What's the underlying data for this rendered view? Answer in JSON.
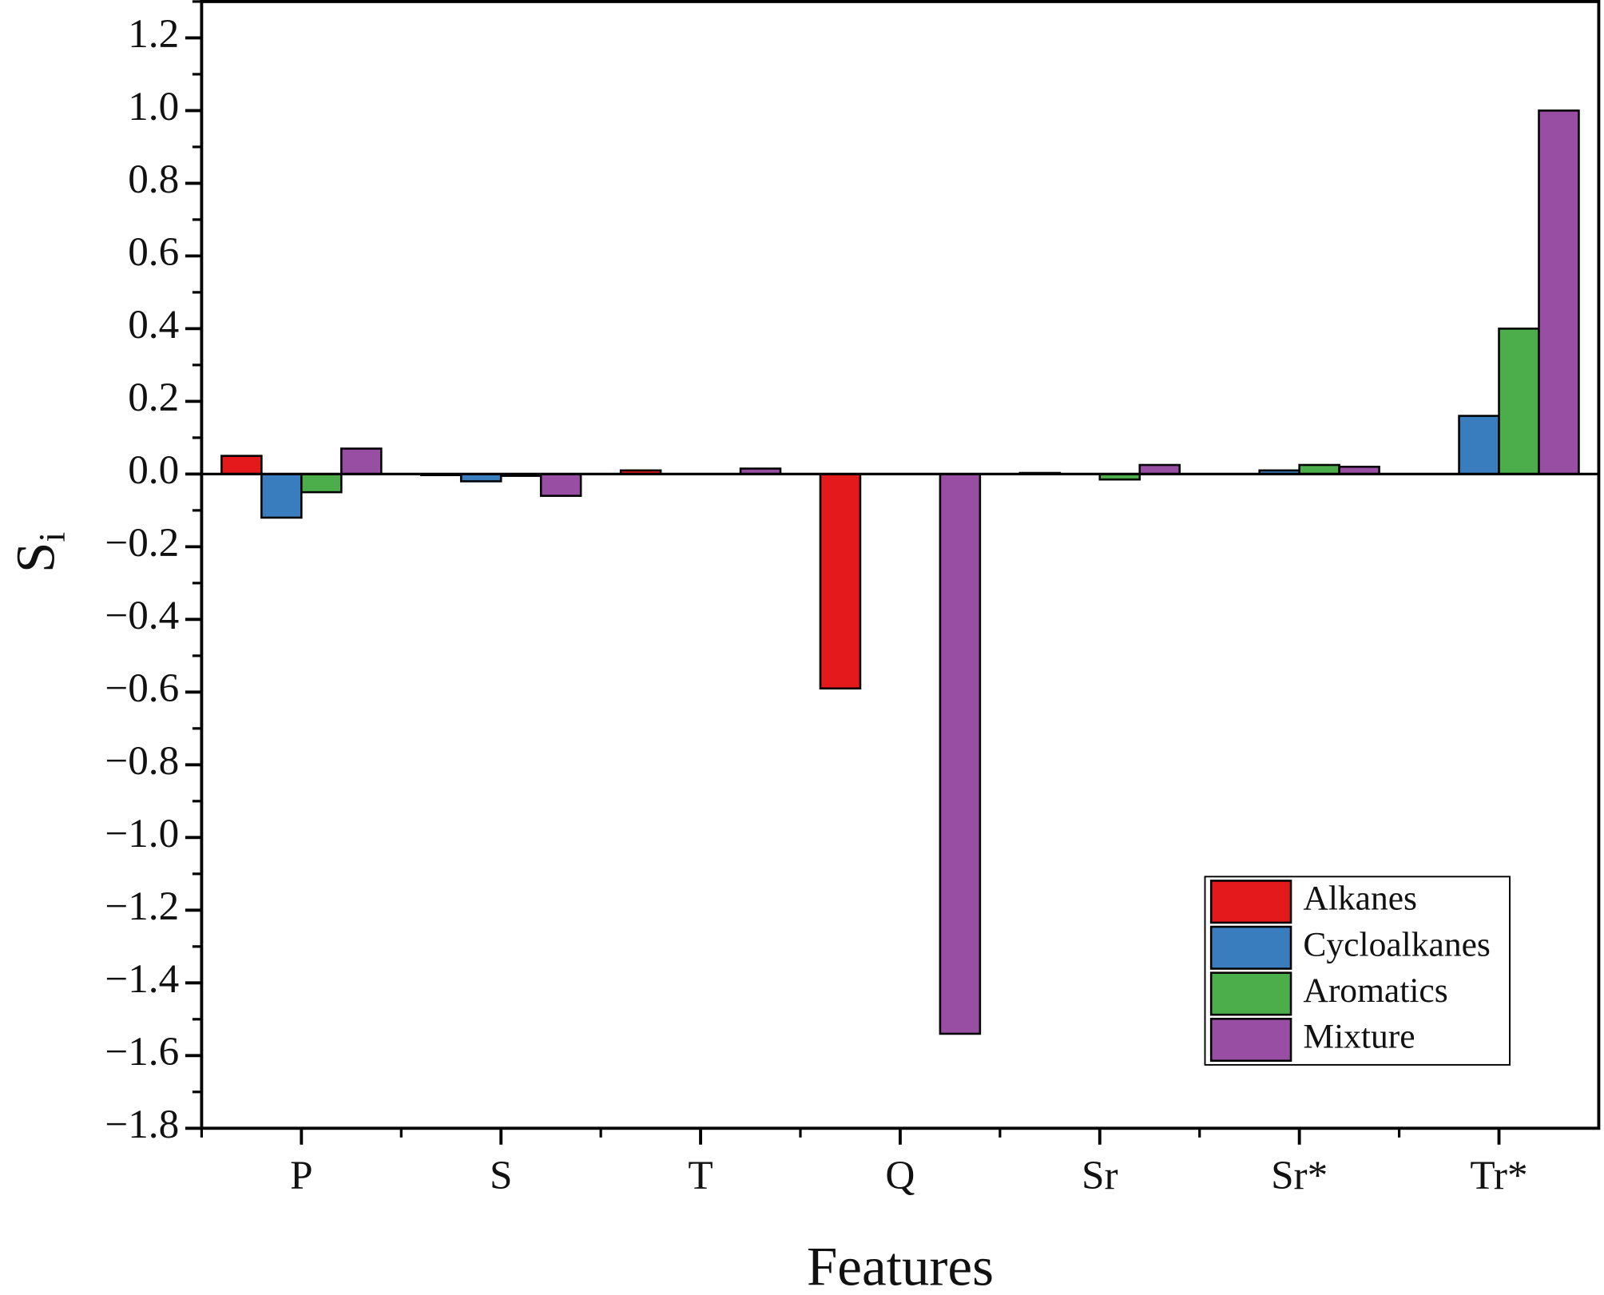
{
  "chart_data": {
    "type": "bar",
    "x_label": "Features",
    "y_label": "S",
    "y_label_subscript": "i",
    "categories": [
      "P",
      "S",
      "T",
      "Q",
      "Sr",
      "Sr*",
      "Tr*"
    ],
    "series": [
      {
        "name": "Alkanes",
        "color": "#e3191c",
        "values": [
          0.05,
          -0.003,
          0.01,
          -0.59,
          0.003,
          0,
          0
        ]
      },
      {
        "name": "Cycloalkanes",
        "color": "#3a7dbf",
        "values": [
          -0.12,
          -0.02,
          0,
          0,
          0,
          0.01,
          0.16
        ]
      },
      {
        "name": "Aromatics",
        "color": "#4cae4a",
        "values": [
          -0.05,
          -0.005,
          0,
          0,
          -0.015,
          0.025,
          0.4
        ]
      },
      {
        "name": "Mixture",
        "color": "#984ea3",
        "values": [
          0.07,
          -0.06,
          0.015,
          -1.54,
          0.025,
          0.02,
          1.0
        ]
      }
    ],
    "ylim": [
      -1.8,
      1.3
    ],
    "yticks": [
      {
        "value": -1.8,
        "label": "−1.8"
      },
      {
        "value": -1.6,
        "label": "−1.6"
      },
      {
        "value": -1.4,
        "label": "−1.4"
      },
      {
        "value": -1.2,
        "label": "−1.2"
      },
      {
        "value": -1.0,
        "label": "−1.0"
      },
      {
        "value": -0.8,
        "label": "−0.8"
      },
      {
        "value": -0.6,
        "label": "−0.6"
      },
      {
        "value": -0.4,
        "label": "−0.4"
      },
      {
        "value": -0.2,
        "label": "−0.2"
      },
      {
        "value": 0,
        "label": "0.0"
      },
      {
        "value": 0.2,
        "label": "0.2"
      },
      {
        "value": 0.4,
        "label": "0.4"
      },
      {
        "value": 0.6,
        "label": "0.6"
      },
      {
        "value": 0.8,
        "label": "0.8"
      },
      {
        "value": 1.0,
        "label": "1.0"
      },
      {
        "value": 1.2,
        "label": "1.2"
      }
    ],
    "grid": false,
    "legend_position": "lower right"
  }
}
